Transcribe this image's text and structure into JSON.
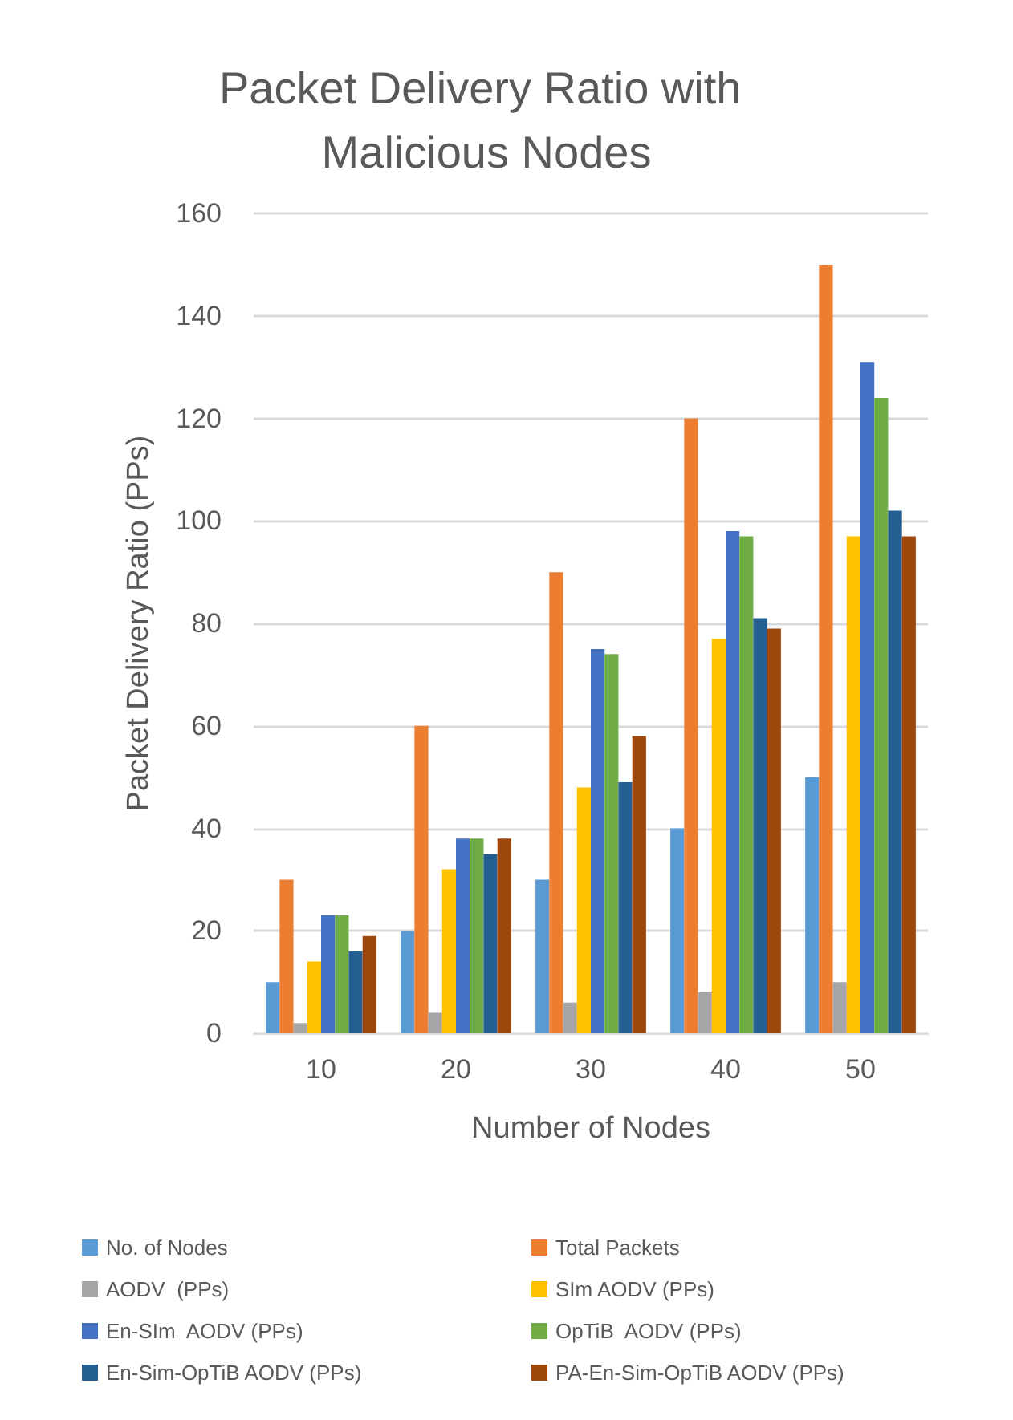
{
  "chart_data": {
    "type": "bar",
    "title": "Packet Delivery Ratio with Malicious Nodes",
    "xlabel": "Number of Nodes",
    "ylabel": "Packet Delivery Ratio (PPs)",
    "categories": [
      "10",
      "20",
      "30",
      "40",
      "50"
    ],
    "series": [
      {
        "name": "No. of Nodes",
        "color": "#5b9bd5",
        "values": [
          10,
          20,
          30,
          40,
          50
        ]
      },
      {
        "name": "Total Packets",
        "color": "#ed7d31",
        "values": [
          30,
          60,
          90,
          120,
          150
        ]
      },
      {
        "name": "AODV  (PPs)",
        "color": "#a5a5a5",
        "values": [
          2,
          4,
          6,
          8,
          10
        ]
      },
      {
        "name": "SIm AODV (PPs)",
        "color": "#ffc000",
        "values": [
          14,
          32,
          48,
          77,
          97
        ]
      },
      {
        "name": "En-SIm  AODV (PPs)",
        "color": "#4472c4",
        "values": [
          23,
          38,
          75,
          98,
          131
        ]
      },
      {
        "name": "OpTiB  AODV (PPs)",
        "color": "#70ad47",
        "values": [
          23,
          38,
          74,
          97,
          124
        ]
      },
      {
        "name": "En-Sim-OpTiB AODV (PPs)",
        "color": "#255e91",
        "values": [
          16,
          35,
          49,
          81,
          102
        ]
      },
      {
        "name": "PA-En-Sim-OpTiB AODV (PPs)",
        "color": "#9e480e",
        "values": [
          19,
          38,
          58,
          79,
          97
        ]
      }
    ],
    "ylim": [
      0,
      160
    ],
    "yticks": [
      0,
      20,
      40,
      60,
      80,
      100,
      120,
      140,
      160
    ],
    "grid": "y",
    "legend": "bottom"
  }
}
